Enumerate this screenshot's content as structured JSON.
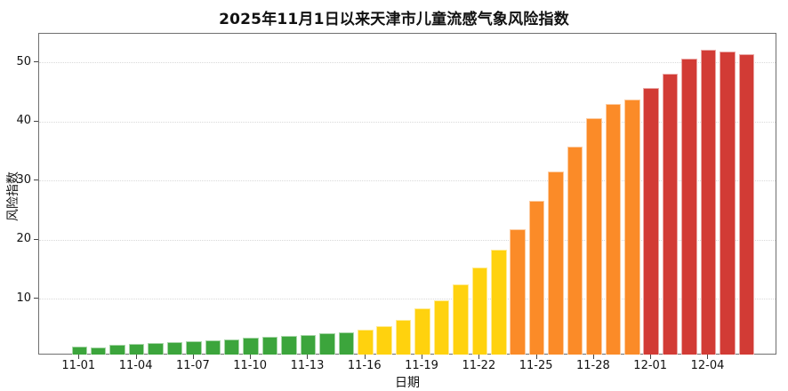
{
  "chart_data": {
    "type": "bar",
    "title": "2025年11月1日以来天津市儿童流感气象风险指数",
    "xlabel": "日期",
    "ylabel": "风险指数",
    "ylim": [
      0,
      54.5
    ],
    "yticks": [
      10,
      20,
      30,
      40,
      50
    ],
    "xtick_labels": [
      "11-01",
      "11-04",
      "11-07",
      "11-10",
      "11-13",
      "11-16",
      "11-19",
      "11-22",
      "11-25",
      "11-28",
      "12-01",
      "12-04"
    ],
    "xtick_every": 3,
    "grid": "horizontal-dotted",
    "legend": "none",
    "categories": [
      "11-01",
      "11-02",
      "11-03",
      "11-04",
      "11-05",
      "11-06",
      "11-07",
      "11-08",
      "11-09",
      "11-10",
      "11-11",
      "11-12",
      "11-13",
      "11-14",
      "11-15",
      "11-16",
      "11-17",
      "11-18",
      "11-19",
      "11-20",
      "11-21",
      "11-22",
      "11-23",
      "11-24",
      "11-25",
      "11-26",
      "11-27",
      "11-28",
      "11-29",
      "11-30",
      "12-01",
      "12-02",
      "12-03",
      "12-04",
      "12-05",
      "12-06"
    ],
    "values": [
      1.9,
      1.8,
      2.2,
      2.3,
      2.5,
      2.6,
      2.8,
      2.9,
      3.1,
      3.4,
      3.5,
      3.7,
      3.9,
      4.2,
      4.3,
      4.7,
      5.3,
      6.4,
      8.3,
      9.7,
      12.4,
      15.2,
      18.3,
      21.8,
      26.5,
      31.5,
      35.7,
      40.6,
      43.0,
      43.7,
      45.7,
      48.0,
      50.6,
      52.1,
      51.8,
      51.3
    ],
    "levels": [
      "low",
      "low",
      "low",
      "low",
      "low",
      "low",
      "low",
      "low",
      "low",
      "low",
      "low",
      "low",
      "low",
      "low",
      "low",
      "moderate",
      "moderate",
      "moderate",
      "moderate",
      "moderate",
      "moderate",
      "moderate",
      "moderate",
      "high",
      "high",
      "high",
      "high",
      "high",
      "high",
      "high",
      "extreme",
      "extreme",
      "extreme",
      "extreme",
      "extreme",
      "extreme"
    ],
    "level_colors": {
      "low": "#3CA53C",
      "moderate": "#FFD20E",
      "high": "#FB8B28",
      "extreme": "#D23B35"
    }
  }
}
